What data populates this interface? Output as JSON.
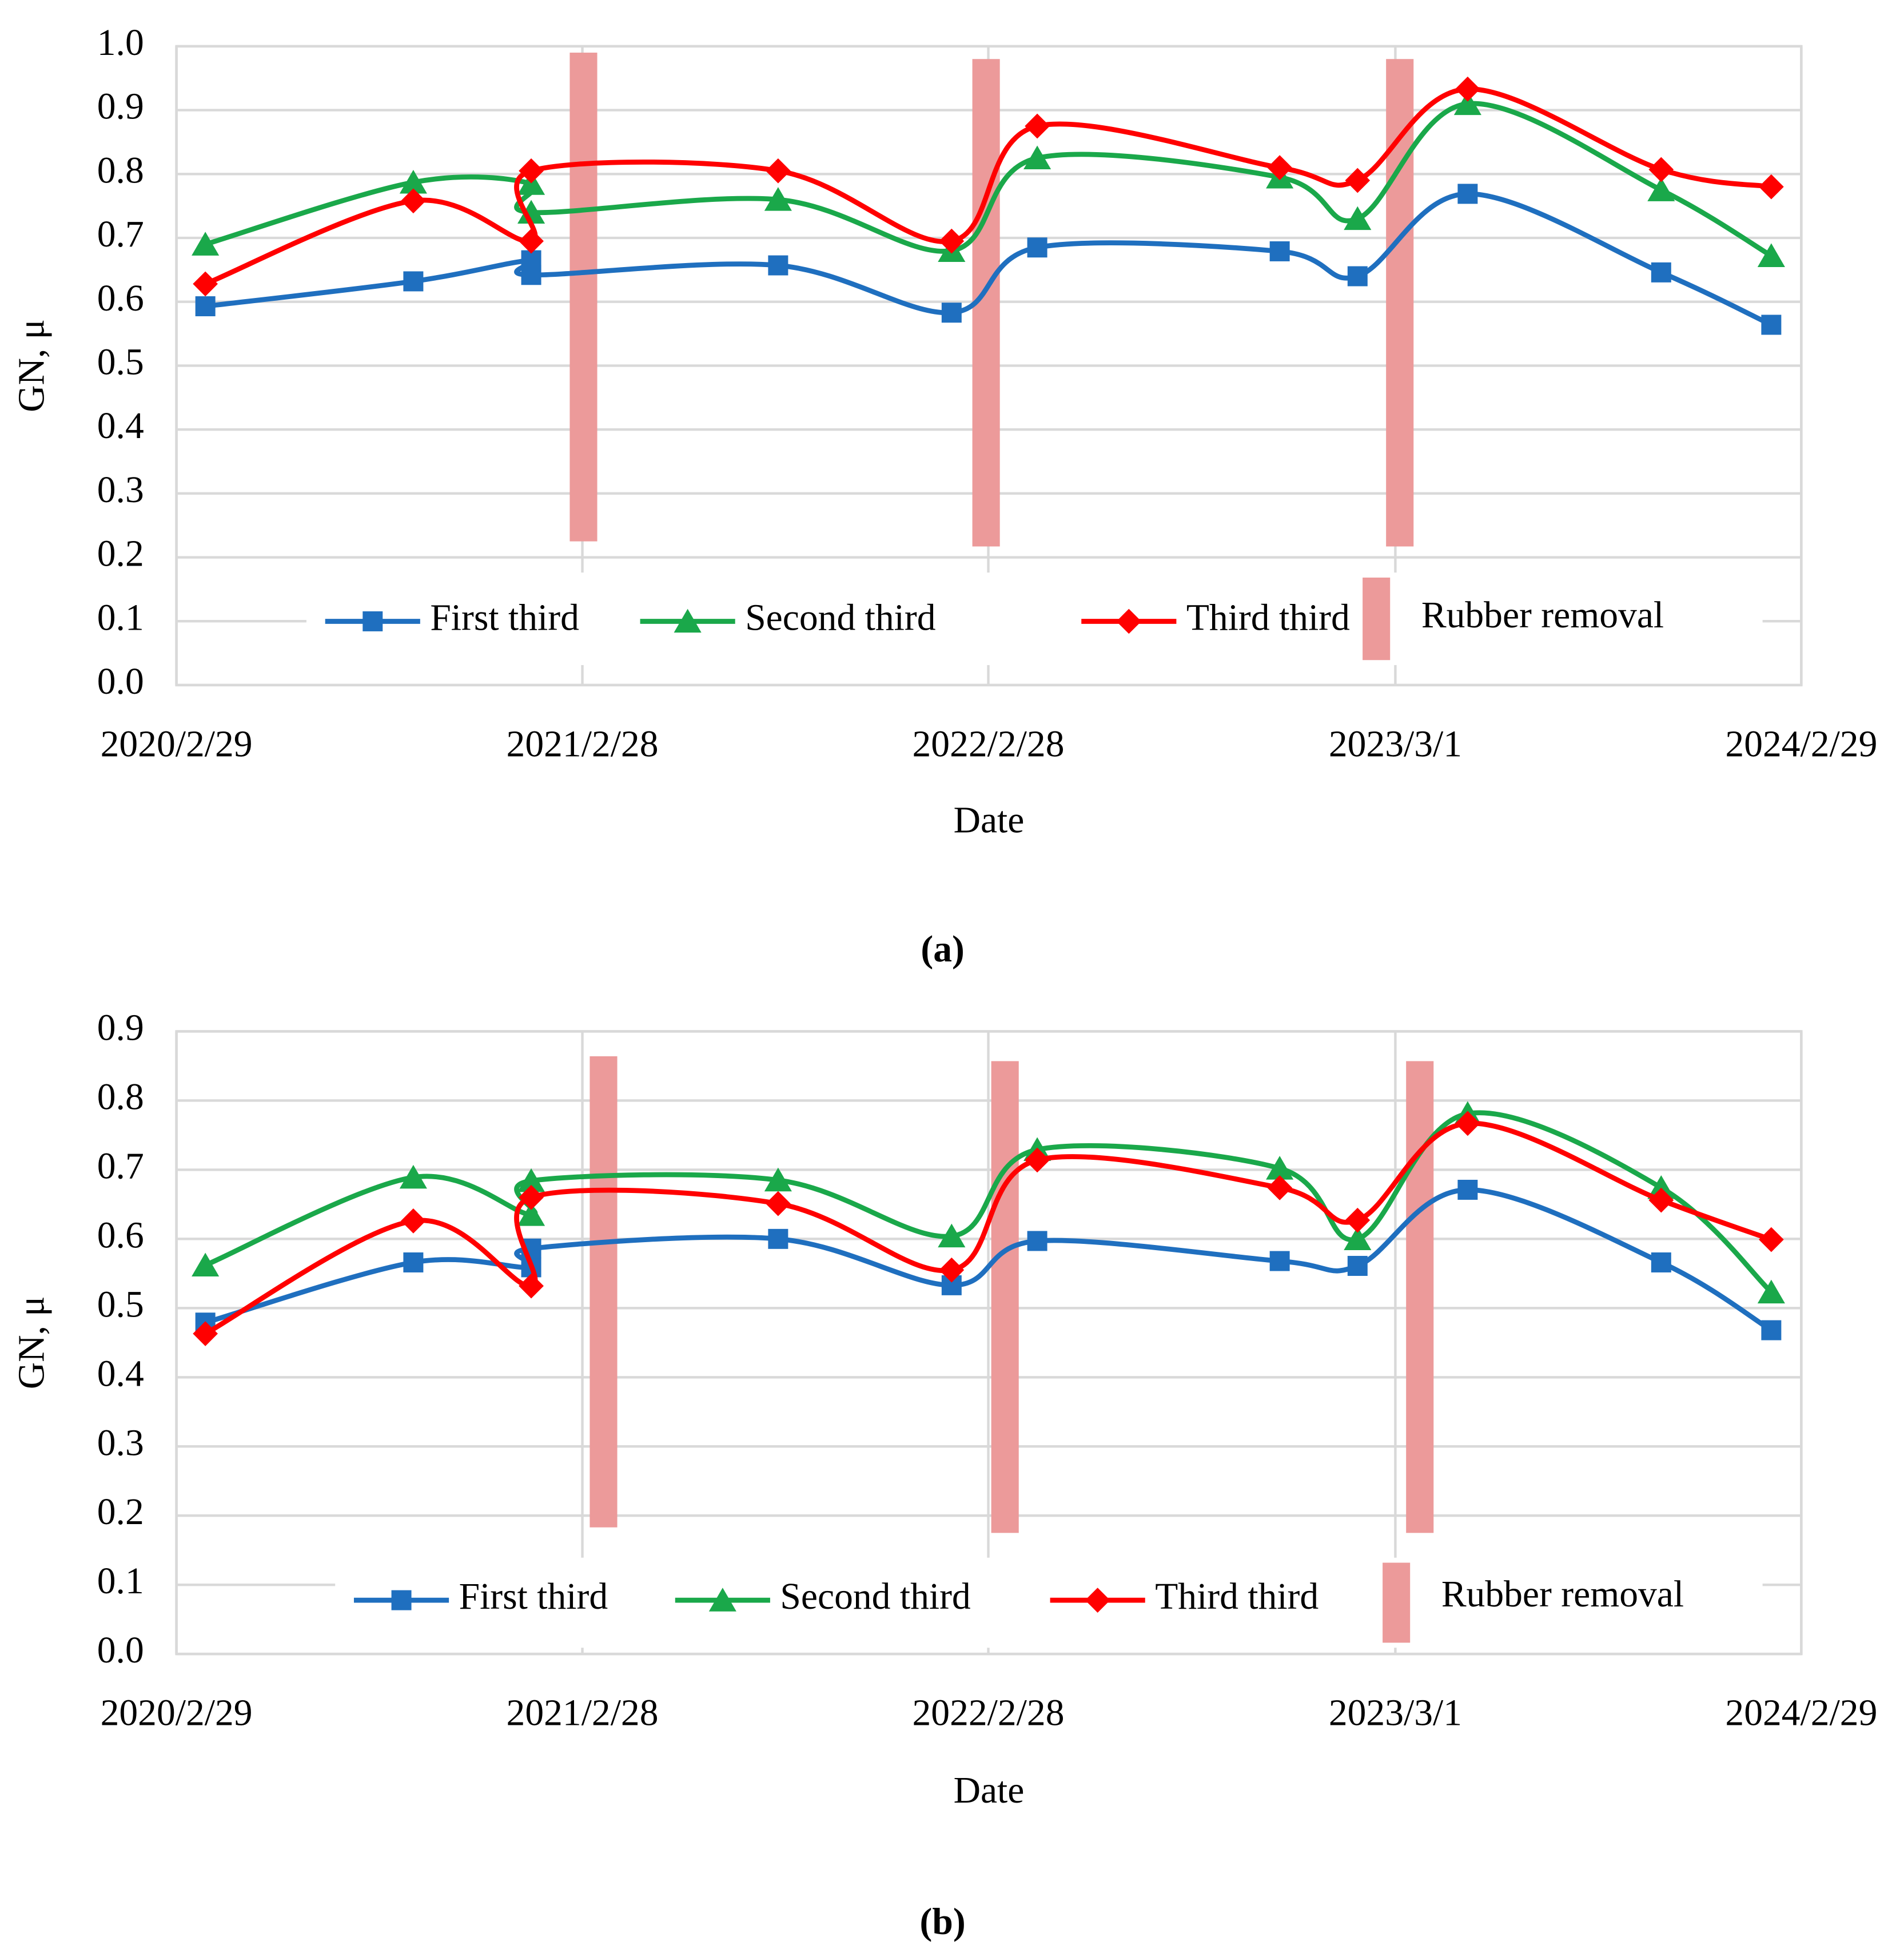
{
  "chart_data": [
    {
      "type": "line",
      "caption": "(a)",
      "xlabel": "Date",
      "ylabel": "GN, μ",
      "x": [
        "2020-03-26",
        "2020-09-29",
        "2021-01-13",
        "2021-01-13",
        "2021-08-23",
        "2022-01-26",
        "2022-04-13",
        "2022-11-17",
        "2023-01-26",
        "2023-05-05",
        "2023-10-26",
        "2024-02-02"
      ],
      "xlim": [
        "2020-02-29",
        "2024-02-29"
      ],
      "xticks": [
        {
          "value": "2020-02-29",
          "label": "2020/2/29"
        },
        {
          "value": "2021-02-28",
          "label": "2021/2/28"
        },
        {
          "value": "2022-02-28",
          "label": "2022/2/28"
        },
        {
          "value": "2023-03-01",
          "label": "2023/3/1"
        },
        {
          "value": "2024-02-29",
          "label": "2024/2/29"
        }
      ],
      "ylim": [
        0,
        1
      ],
      "yticks": [
        {
          "value": 0,
          "label": "0.0"
        },
        0.1,
        0.2,
        0.3,
        0.4,
        0.5,
        0.6,
        0.7,
        0.8,
        0.9,
        {
          "value": 1,
          "label": "1.0"
        }
      ],
      "grid": true,
      "legend": "bottom",
      "series": [
        {
          "name": "First third",
          "color": "#1f6fbf",
          "marker": "square",
          "values": [
            0.593,
            0.632,
            0.665,
            0.642,
            0.657,
            0.583,
            0.685,
            0.679,
            0.64,
            0.769,
            0.646,
            0.564
          ]
        },
        {
          "name": "Second third",
          "color": "#1aa84a",
          "marker": "triangle",
          "values": [
            0.69,
            0.787,
            0.785,
            0.74,
            0.76,
            0.68,
            0.825,
            0.795,
            0.73,
            0.91,
            0.775,
            0.672
          ]
        },
        {
          "name": "Third third",
          "color": "#ff0000",
          "marker": "diamond",
          "values": [
            0.628,
            0.758,
            0.695,
            0.805,
            0.805,
            0.695,
            0.875,
            0.81,
            0.79,
            0.933,
            0.807,
            0.78
          ]
        }
      ],
      "ranges": {
        "name": "Rubber removal",
        "color": "#ec9a9a",
        "x": [
          "2021-03-01",
          "2022-02-26",
          "2023-03-05"
        ],
        "low": [
          0.225,
          0.217,
          0.217
        ],
        "high": [
          0.99,
          0.98,
          0.98
        ]
      }
    },
    {
      "type": "line",
      "caption": "(b)",
      "xlabel": "Date",
      "ylabel": "GN, μ",
      "x": [
        "2020-03-26",
        "2020-09-29",
        "2021-01-13",
        "2021-01-13",
        "2021-08-23",
        "2022-01-26",
        "2022-04-13",
        "2022-11-17",
        "2023-01-26",
        "2023-05-05",
        "2023-10-26",
        "2024-02-02"
      ],
      "xlim": [
        "2020-02-29",
        "2024-02-29"
      ],
      "xticks": [
        {
          "value": "2020-02-29",
          "label": "2020/2/29"
        },
        {
          "value": "2021-02-28",
          "label": "2021/2/28"
        },
        {
          "value": "2022-02-28",
          "label": "2022/2/28"
        },
        {
          "value": "2023-03-01",
          "label": "2023/3/1"
        },
        {
          "value": "2024-02-29",
          "label": "2024/2/29"
        }
      ],
      "ylim": [
        0,
        0.9
      ],
      "yticks": [
        {
          "value": 0,
          "label": "0.0"
        },
        0.1,
        0.2,
        0.3,
        0.4,
        0.5,
        0.6,
        0.7,
        0.8,
        0.9
      ],
      "grid": true,
      "legend": "bottom",
      "series": [
        {
          "name": "First third",
          "color": "#1f6fbf",
          "marker": "square",
          "values": [
            0.479,
            0.566,
            0.559,
            0.586,
            0.6,
            0.533,
            0.597,
            0.568,
            0.561,
            0.671,
            0.566,
            0.468
          ]
        },
        {
          "name": "Second third",
          "color": "#1aa84a",
          "marker": "triangle",
          "values": [
            0.562,
            0.689,
            0.635,
            0.684,
            0.685,
            0.604,
            0.729,
            0.702,
            0.6,
            0.781,
            0.674,
            0.523
          ]
        },
        {
          "name": "Third third",
          "color": "#ff0000",
          "marker": "diamond",
          "values": [
            0.463,
            0.626,
            0.532,
            0.66,
            0.651,
            0.555,
            0.714,
            0.674,
            0.627,
            0.767,
            0.656,
            0.599
          ]
        }
      ],
      "ranges": {
        "name": "Rubber removal",
        "color": "#ec9a9a",
        "x": [
          "2021-03-19",
          "2022-03-15",
          "2023-03-23"
        ],
        "low": [
          0.183,
          0.175,
          0.175
        ],
        "high": [
          0.864,
          0.857,
          0.857
        ]
      }
    }
  ]
}
